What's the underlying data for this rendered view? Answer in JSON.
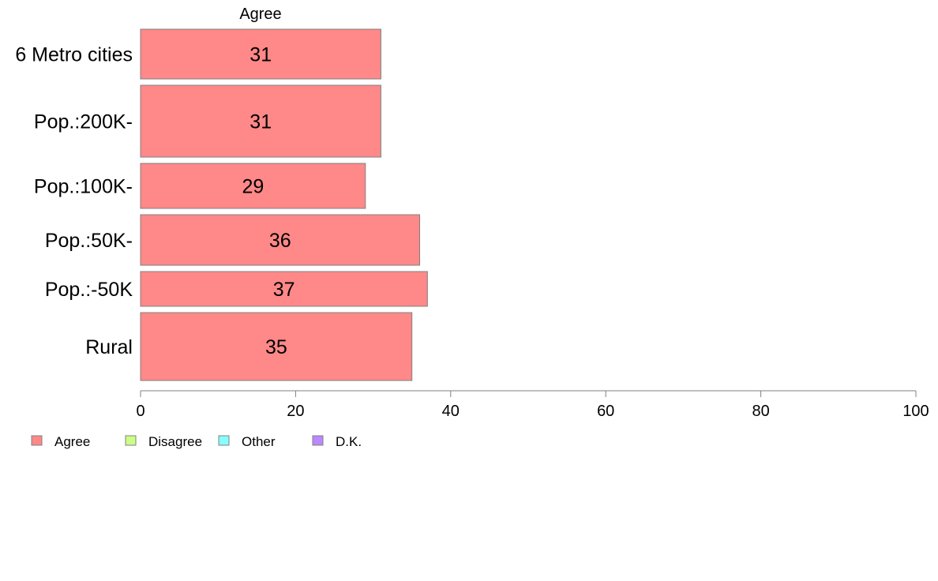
{
  "chart_data": {
    "type": "bar",
    "orientation": "horizontal",
    "series_title": "Agree",
    "categories": [
      "6 Metro cities",
      "Pop.:200K-",
      "Pop.:100K-",
      "Pop.:50K-",
      "Pop.:-50K",
      "Rural"
    ],
    "series": [
      {
        "name": "Agree",
        "values": [
          31,
          31,
          29,
          36,
          37,
          35
        ],
        "color": "#ff8888"
      }
    ],
    "xlim": [
      0,
      100
    ],
    "xticks": [
      0,
      20,
      40,
      60,
      80,
      100
    ],
    "grid": false,
    "legend": [
      {
        "label": "Agree",
        "color": "#ff8888"
      },
      {
        "label": "Disagree",
        "color": "#ccff88"
      },
      {
        "label": "Other",
        "color": "#88ffff"
      },
      {
        "label": "D.K.",
        "color": "#bb88ff"
      }
    ],
    "legend_position": "bottom-left"
  }
}
